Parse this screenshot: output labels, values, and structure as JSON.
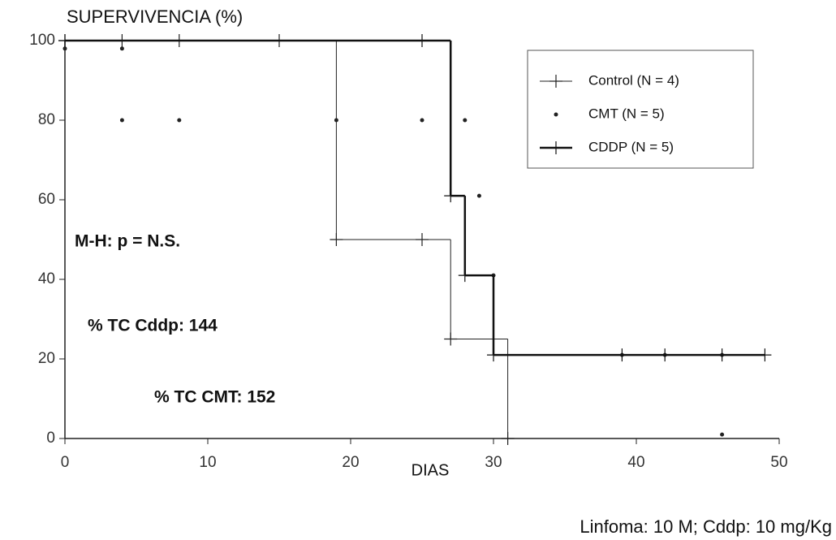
{
  "chart_data": {
    "type": "survival",
    "title": "SUPERVIVENCIA (%)",
    "x_label": "DIAS",
    "annotations": [
      "M-H: p = N.S.",
      "% TC Cddp: 144",
      "% TC CMT: 152"
    ],
    "footnote": "Linfoma: 10 M; Cddp: 10 mg/Kg",
    "xlim": [
      0,
      50
    ],
    "xticks": [
      0,
      10,
      20,
      30,
      40,
      50
    ],
    "ylim": [
      0,
      100
    ],
    "yticks": [
      0,
      20,
      40,
      60,
      80,
      100
    ],
    "series": [
      {
        "name": "Control (N = 4)",
        "color": "#222",
        "marker": "plus",
        "line_width": 1,
        "x": [
          0,
          4,
          8,
          15,
          19,
          25,
          27,
          31
        ],
        "values": [
          100,
          100,
          100,
          100,
          50,
          50,
          25,
          0
        ]
      },
      {
        "name": "CMT (N = 5)",
        "color": "#222",
        "marker": "dot",
        "line_width": 0,
        "x": [
          0,
          4,
          4,
          8,
          19,
          25,
          28,
          29,
          30,
          39,
          42,
          46,
          46
        ],
        "values": [
          98,
          98,
          80,
          80,
          80,
          80,
          80,
          61,
          41,
          21,
          21,
          21,
          1
        ]
      },
      {
        "name": "CDDP (N = 5)",
        "color": "#111",
        "marker": "plus",
        "line_width": 2.5,
        "x": [
          0,
          25,
          27,
          28,
          30,
          39,
          42,
          46,
          49
        ],
        "values": [
          100,
          100,
          61,
          41,
          21,
          21,
          21,
          21,
          21
        ]
      }
    ]
  }
}
